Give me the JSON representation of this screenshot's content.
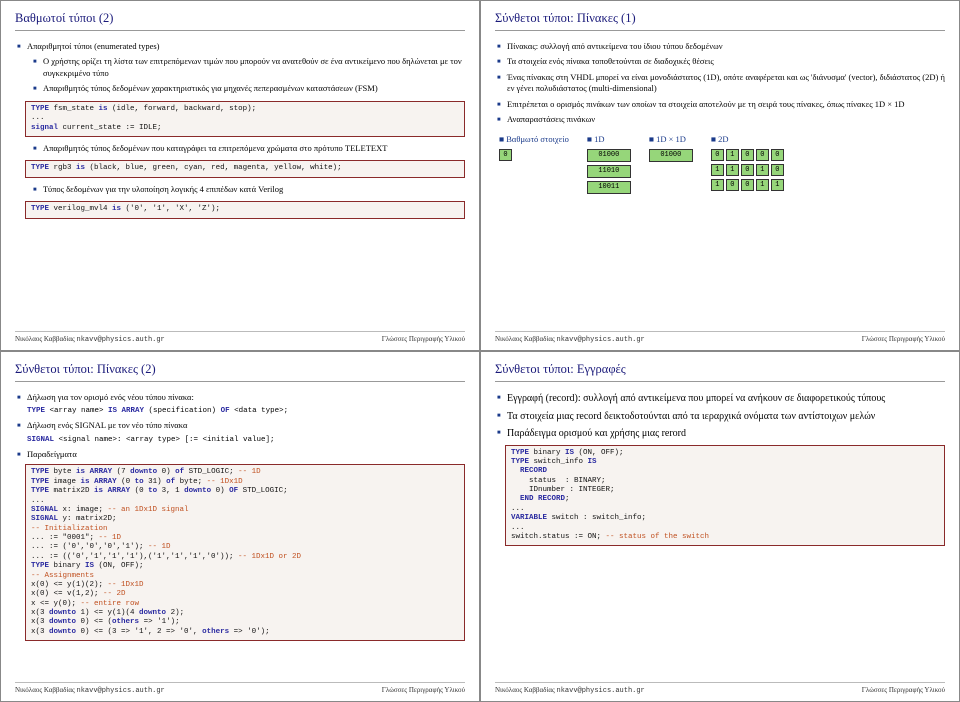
{
  "footer": {
    "author": "Νικόλαος Καββαδίας",
    "email": "nkavv@physics.auth.gr",
    "course": "Γλώσσες Περιγραφής Υλικού"
  },
  "s1": {
    "title": "Βαθμωτοί τύποι (2)",
    "b1": "Απαριθμητοί τύποι (enumerated types)",
    "b2": "Ο χρήστης ορίζει τη λίστα των επιτρεπόμενων τιμών που μπορούν να ανατεθούν σε ένα αντικείμενο που δηλώνεται με τον συγκεκριμένο τύπο",
    "b3": "Απαριθμητός τύπος δεδομένων χαρακτηριστικός για μηχανές πεπερασμένων καταστάσεων (FSM)",
    "code1": "TYPE fsm_state is (idle, forward, backward, stop);\n...\nsignal current_state := IDLE;",
    "b4": "Απαριθμητός τύπος δεδομένων που καταγράφει τα επιτρεπόμενα χρώματα στο πρότυπο TELETEXT",
    "code2": "TYPE rgb3 is (black, blue, green, cyan, red, magenta, yellow, white);",
    "b5": "Τύπος δεδομένων για την υλοποίηση λογικής 4 επιπέδων κατά Verilog",
    "code3": "TYPE verilog_mvl4 is ('0', '1', 'X', 'Z');"
  },
  "s2": {
    "title": "Σύνθετοι τύποι: Πίνακες (1)",
    "b1": "Πίνακας: συλλογή από αντικείμενα του ίδιου τύπου δεδομένων",
    "b2": "Τα στοιχεία ενός πίνακα τοποθετούνται σε διαδοχικές θέσεις",
    "b3": "Ένας πίνακας στη VHDL μπορεί να είναι μονοδιάστατος (1D), οπότε αναφέρεται και ως 'διάνυσμα' (vector), διδιάστατος (2D) ή εν γένει πολυδιάστατος (multi-dimensional)",
    "b4": "Επιτρέπεται ο ορισμός πινάκων των οποίων τα στοιχεία αποτελούν με τη σειρά τους πίνακες, όπως πίνακες 1D × 1D",
    "b5": "Αναπαραστάσεις πινάκων",
    "h1": "Βαθμωτό στοιχείο",
    "h2": "1D",
    "h3": "1D × 1D",
    "h4": "2D",
    "scalar": "0",
    "v1d": [
      "01000",
      "11010",
      "10011"
    ],
    "v1d1d": [
      "01000"
    ],
    "m2d": [
      [
        "0",
        "1",
        "0",
        "0",
        "0"
      ],
      [
        "1",
        "1",
        "0",
        "1",
        "0"
      ],
      [
        "1",
        "0",
        "0",
        "1",
        "1"
      ]
    ]
  },
  "s3": {
    "title": "Σύνθετοι τύποι: Πίνακες (2)",
    "b1": "Δήλωση για τον ορισμό ενός νέου τύπου πίνακα:",
    "code1": "TYPE <array name> IS ARRAY (specification) OF <data type>;",
    "b2": "Δήλωση ενός SIGNAL με τον νέο τύπο πίνακα",
    "code2": "SIGNAL <signal name>: <array type> [:= <initial value];",
    "b3": "Παραδείγματα",
    "code3": "TYPE byte is ARRAY (7 downto 0) of STD_LOGIC; -- 1D\nTYPE image is ARRAY (0 to 31) of byte; -- 1Dx1D\nTYPE matrix2D is ARRAY (0 to 3, 1 downto 0) OF STD_LOGIC;\n...\nSIGNAL x: image; -- an 1Dx1D signal\nSIGNAL y: matrix2D;\n-- Initialization\n... := \"0001\"; -- 1D\n... := ('0','0','0','1'); -- 1D\n... := (('0','1','1','1'),('1','1','1','0')); -- 1Dx1D or 2D\nTYPE binary IS (ON, OFF);\n-- Assignments\nx(0) <= y(1)(2); -- 1Dx1D\nx(0) <= v(1,2); -- 2D\nx <= y(0); -- entire row\nx(3 downto 1) <= y(1)(4 downto 2);\nx(3 downto 0) <= (others => '1');\nx(3 downto 0) <= (3 => '1', 2 => '0', others => '0');"
  },
  "s4": {
    "title": "Σύνθετοι τύποι: Εγγραφές",
    "b1": "Εγγραφή (record): συλλογή από αντικείμενα που μπορεί να ανήκουν σε διαφορετικούς τύπους",
    "b2": "Τα στοιχεία μιας record δεικτοδοτούνται από τα ιεραρχικά ονόματα των αντίστοιχων μελών",
    "b3": "Παράδειγμα ορισμού και χρήσης μιας rerord",
    "code1": "TYPE binary IS (ON, OFF);\nTYPE switch_info IS\n  RECORD\n    status  : BINARY;\n    IDnumber : INTEGER;\n  END RECORD;\n...\nVARIABLE switch : switch_info;\n...\nswitch.status := ON; -- status of the switch"
  }
}
